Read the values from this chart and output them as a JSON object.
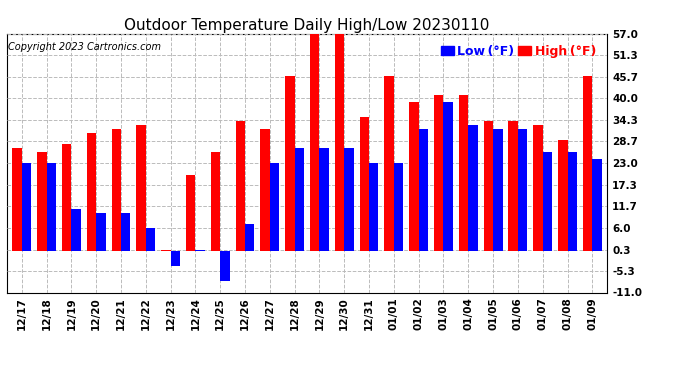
{
  "title": "Outdoor Temperature Daily High/Low 20230110",
  "copyright": "Copyright 2023 Cartronics.com",
  "legend_low_label": "Low (°F)",
  "legend_high_label": "High (°F)",
  "dates": [
    "12/17",
    "12/18",
    "12/19",
    "12/20",
    "12/21",
    "12/22",
    "12/23",
    "12/24",
    "12/25",
    "12/26",
    "12/27",
    "12/28",
    "12/29",
    "12/30",
    "12/31",
    "01/01",
    "01/02",
    "01/03",
    "01/04",
    "01/05",
    "01/06",
    "01/07",
    "01/08",
    "01/09"
  ],
  "highs": [
    27,
    26,
    28,
    31,
    32,
    33,
    0.3,
    20,
    26,
    34,
    32,
    46,
    57,
    57,
    35,
    46,
    39,
    41,
    41,
    34,
    34,
    33,
    29,
    46
  ],
  "lows": [
    23,
    23,
    11,
    10,
    10,
    6,
    -4,
    0.3,
    -8,
    7,
    23,
    27,
    27,
    27,
    23,
    23,
    32,
    39,
    33,
    32,
    32,
    26,
    26,
    24
  ],
  "ylim_min": -11.0,
  "ylim_max": 57.0,
  "yticks": [
    -11.0,
    -5.3,
    0.3,
    6.0,
    11.7,
    17.3,
    23.0,
    28.7,
    34.3,
    40.0,
    45.7,
    51.3,
    57.0
  ],
  "bar_color_high": "#ff0000",
  "bar_color_low": "#0000ff",
  "background_color": "#ffffff",
  "grid_color": "#bbbbbb",
  "title_fontsize": 11,
  "copyright_fontsize": 7,
  "legend_fontsize": 9,
  "axis_fontsize": 7.5,
  "bar_width": 0.38
}
